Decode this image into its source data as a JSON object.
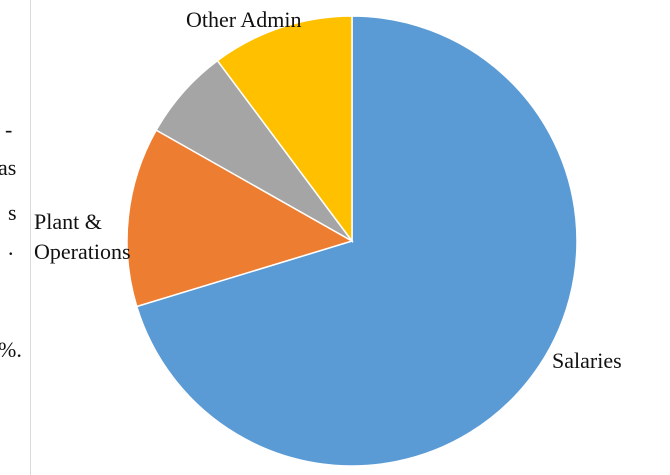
{
  "cropped_text": [
    "-",
    "as",
    "s",
    ".",
    "%."
  ],
  "chart_data": {
    "type": "pie",
    "categories": [
      "Salaries",
      "Plant &\nOperations",
      null,
      "Other Admin"
    ],
    "values": [
      70.3,
      12.9,
      6.6,
      10.2
    ],
    "colors": [
      "#5b9bd5",
      "#ed7d31",
      "#a5a5a5",
      "#ffc000"
    ],
    "start_angle": 0,
    "direction": "clockwise"
  }
}
